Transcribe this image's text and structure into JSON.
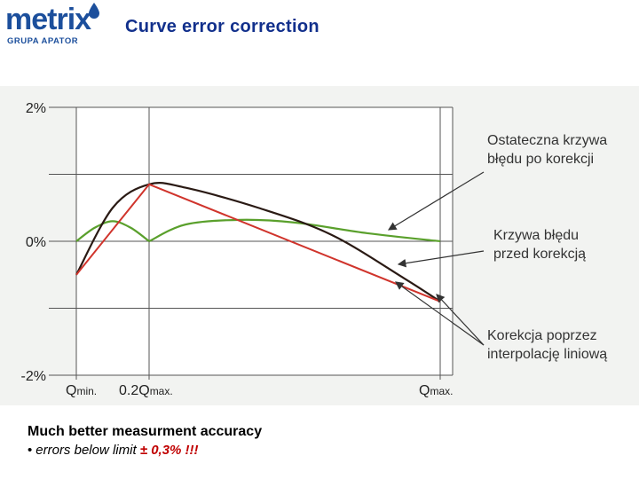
{
  "logo": {
    "wordmark": "metrix",
    "tagline": "GRUPA APATOR"
  },
  "title": "Curve error correction",
  "footer": {
    "headline": "Much better measurment accuracy",
    "bullet_text": "errors below limit",
    "limit_value": "± 0,3% !!!"
  },
  "colors": {
    "title": "#12308c",
    "final_curve": "#5aa02c",
    "uncorrected_curve": "#2a1a14",
    "linear_correction": "#d0342c",
    "limit_text": "#c00000"
  },
  "chart_data": {
    "type": "line",
    "title": "",
    "xlabel": "",
    "ylabel": "",
    "ylim": [
      -2,
      2
    ],
    "y_ticks": [
      {
        "value": 2,
        "label": "2%"
      },
      {
        "value": 0,
        "label": "0%"
      },
      {
        "value": -2,
        "label": "-2%"
      }
    ],
    "y_grid": [
      2,
      1,
      0,
      -1,
      -2
    ],
    "x_ticks": [
      {
        "value": 0,
        "label_main": "Q",
        "label_sub": "min."
      },
      {
        "value": 0.2,
        "label_main": "0.2Q",
        "label_sub": "max."
      },
      {
        "value": 1,
        "label_main": "Q",
        "label_sub": "max."
      }
    ],
    "x_grid": [
      0,
      0.2,
      1
    ],
    "xlim": [
      0,
      1
    ],
    "series": [
      {
        "key": "uncorrected",
        "name": "Krzywa błędu przed korekcją",
        "color": "#2a1a14",
        "x": [
          0,
          0.1,
          0.2,
          0.3,
          0.5,
          0.7,
          0.9,
          1.0
        ],
        "y": [
          -0.5,
          0.5,
          0.85,
          0.8,
          0.5,
          0.1,
          -0.55,
          -0.9
        ]
      },
      {
        "key": "correction",
        "name": "Korekcja poprzez interpolację liniową",
        "color": "#d0342c",
        "x": [
          0,
          0.2,
          1.0
        ],
        "y": [
          -0.5,
          0.85,
          -0.9
        ]
      },
      {
        "key": "final",
        "name": "Ostateczna krzywa błędu po korekcji",
        "color": "#5aa02c",
        "x": [
          0,
          0.05,
          0.1,
          0.15,
          0.2,
          0.3,
          0.45,
          0.6,
          0.8,
          1.0
        ],
        "y": [
          0,
          0.2,
          0.3,
          0.2,
          0,
          0.25,
          0.32,
          0.28,
          0.12,
          0
        ]
      }
    ],
    "annotations": [
      {
        "target": "final",
        "lines": [
          "Ostateczna krzywa",
          "błędu po korekcji"
        ]
      },
      {
        "target": "uncorrected",
        "lines": [
          "Krzywa błędu",
          "przed korekcją"
        ]
      },
      {
        "target": "correction",
        "lines": [
          "Korekcja poprzez",
          "interpolację liniową"
        ]
      }
    ]
  }
}
